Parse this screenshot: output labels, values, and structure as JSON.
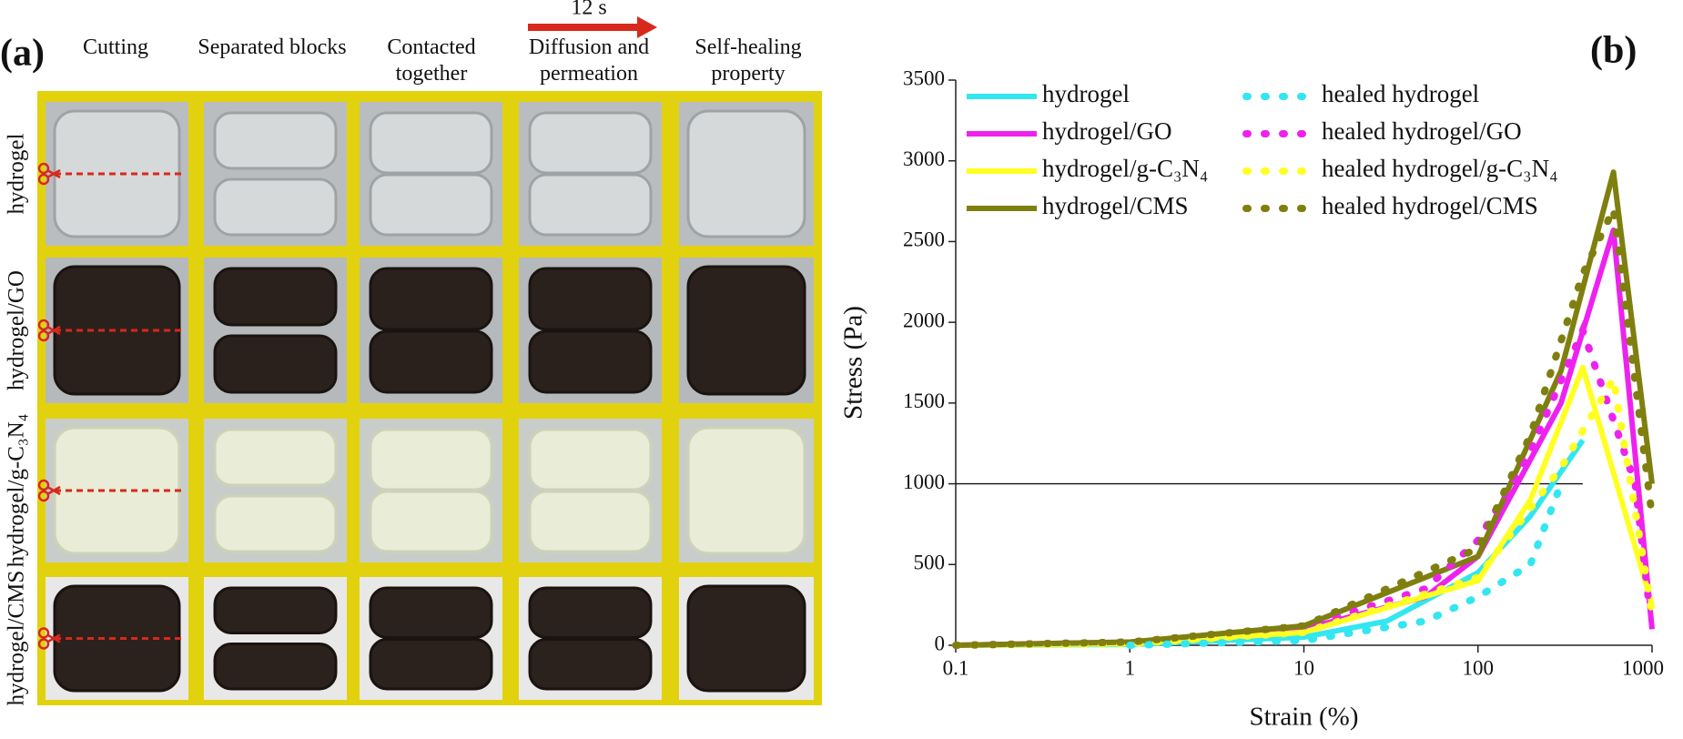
{
  "panel_a": {
    "label": "(a)",
    "columns": [
      "Cutting",
      "Separated blocks",
      "Contacted together",
      "Diffusion and permeation",
      "Self-healing property"
    ],
    "arrow_label": "12 s",
    "rows": [
      "hydrogel",
      "hydrogel/GO",
      "hydrogel/g-C₃N₄",
      "hydrogel/CMS"
    ]
  },
  "chart_data": {
    "type": "line",
    "panel_label": "(b)",
    "xlabel": "Strain (%)",
    "ylabel": "Stress (Pa)",
    "xscale": "log",
    "xlim": [
      0.1,
      1000
    ],
    "ylim": [
      0,
      3500
    ],
    "xticks": [
      0.1,
      1,
      10,
      100,
      1000
    ],
    "yticks": [
      0,
      500,
      1000,
      1500,
      2000,
      2500,
      3000,
      3500
    ],
    "legend": "upper left",
    "reference_line": {
      "y": 1000,
      "x": [
        0.1,
        400
      ]
    },
    "series": [
      {
        "name": "hydrogel",
        "color": "#33e6f0",
        "style": "solid",
        "x": [
          0.1,
          1,
          10,
          30,
          100,
          200,
          400
        ],
        "values": [
          0,
          5,
          50,
          150,
          450,
          800,
          1270
        ]
      },
      {
        "name": "hydrogel/GO",
        "color": "#ee22ee",
        "style": "solid",
        "x": [
          0.1,
          1,
          10,
          50,
          100,
          300,
          600,
          1000
        ],
        "values": [
          0,
          20,
          100,
          300,
          550,
          1500,
          2570,
          100
        ]
      },
      {
        "name": "hydrogel/g-C₃N₄",
        "color": "#ffff22",
        "style": "solid",
        "x": [
          0.1,
          1,
          10,
          100,
          200,
          400,
          1000
        ],
        "values": [
          0,
          10,
          80,
          400,
          900,
          1720,
          250
        ]
      },
      {
        "name": "hydrogel/CMS",
        "color": "#7f7f10",
        "style": "solid",
        "x": [
          0.1,
          1,
          10,
          100,
          300,
          600,
          1000
        ],
        "values": [
          0,
          20,
          120,
          550,
          1700,
          2930,
          1000
        ]
      },
      {
        "name": "healed hydrogel",
        "color": "#33e6f0",
        "style": "dotted",
        "x": [
          1,
          10,
          50,
          100,
          200,
          300
        ],
        "values": [
          0,
          30,
          150,
          300,
          500,
          1000
        ]
      },
      {
        "name": "healed hydrogel/GO",
        "color": "#ee22ee",
        "style": "dotted",
        "x": [
          0.1,
          1,
          10,
          50,
          100,
          200,
          400,
          800,
          950
        ],
        "values": [
          0,
          20,
          110,
          350,
          650,
          1200,
          1950,
          1000,
          300
        ]
      },
      {
        "name": "healed hydrogel/g-C₃N₄",
        "color": "#ffff22",
        "style": "dotted",
        "x": [
          0.1,
          1,
          10,
          100,
          300,
          600,
          1000
        ],
        "values": [
          0,
          10,
          80,
          420,
          1100,
          1650,
          200
        ]
      },
      {
        "name": "healed hydrogel/CMS",
        "color": "#7f7f10",
        "style": "dotted",
        "x": [
          0.1,
          1,
          10,
          100,
          200,
          400,
          600,
          1000
        ],
        "values": [
          0,
          20,
          120,
          600,
          1300,
          2300,
          2700,
          800
        ]
      }
    ]
  }
}
